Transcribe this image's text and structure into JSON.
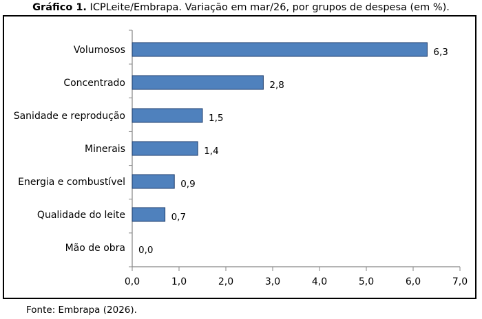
{
  "caption": {
    "prefix": "Gráfico 1.",
    "text": "ICPLeite/Embrapa. Variação em mar/26, por grupos de despesa (em %)."
  },
  "source": "Fonte: Embrapa (2026).",
  "chart_data": {
    "type": "bar",
    "orientation": "horizontal",
    "categories": [
      "Volumosos",
      "Concentrado",
      "Sanidade e reprodução",
      "Minerais",
      "Energia e combustível",
      "Qualidade do leite",
      "Mão de obra"
    ],
    "values": [
      6.3,
      2.8,
      1.5,
      1.4,
      0.9,
      0.7,
      0.0
    ],
    "value_labels": [
      "6,3",
      "2,8",
      "1,5",
      "1,4",
      "0,9",
      "0,7",
      "0,0"
    ],
    "xlim": [
      0,
      7
    ],
    "xticks": [
      0,
      1,
      2,
      3,
      4,
      5,
      6,
      7
    ],
    "xtick_labels": [
      "0,0",
      "1,0",
      "2,0",
      "3,0",
      "4,0",
      "5,0",
      "6,0",
      "7,0"
    ],
    "grid": false,
    "legend": "none",
    "colors": {
      "bar_fill": "#4f81bd",
      "bar_stroke": "#1f3d6b",
      "axis": "#868686"
    }
  }
}
